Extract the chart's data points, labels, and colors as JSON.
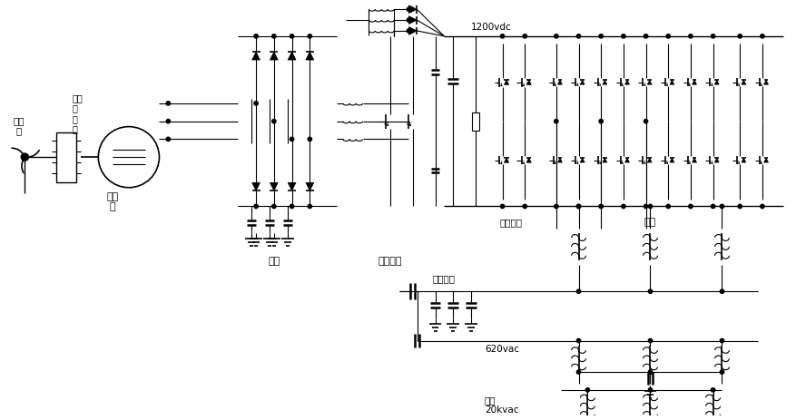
{
  "bg_color": "#ffffff",
  "labels": {
    "fengliji": "风力\n机",
    "gearbox": "增速\n齿\n轮\n箱",
    "generator": "发\n电\n机",
    "zhengliu": "整流",
    "boost": "升压斩波",
    "brake": "制动单元",
    "inverter": "逆变",
    "filter": "滤波电容",
    "v620": "620vac",
    "v1200": "1200vdc",
    "grid": "电网\n20kvac"
  }
}
